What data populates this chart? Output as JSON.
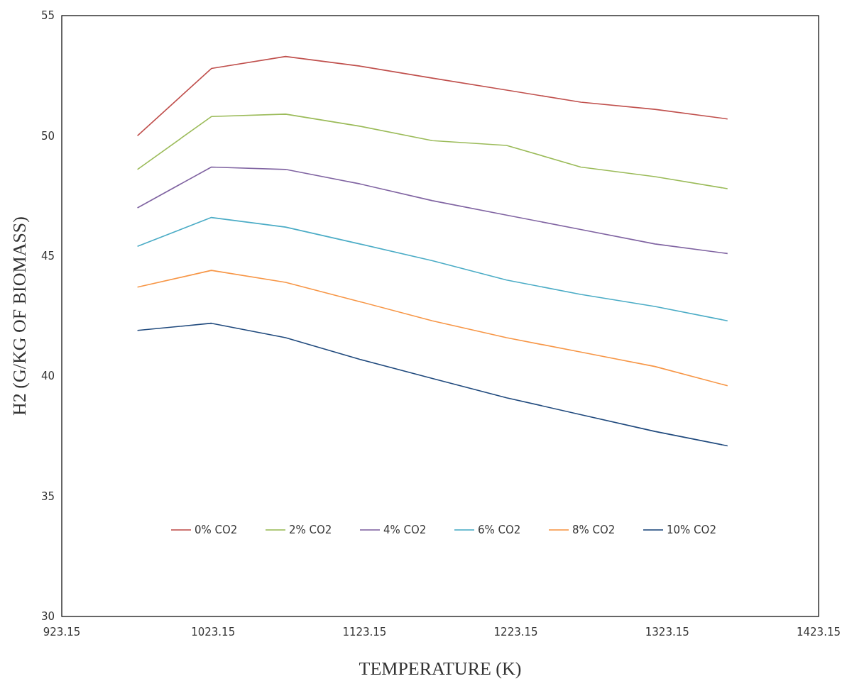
{
  "chart_data": {
    "type": "line",
    "xlabel": "TEMPERATURE  (K)",
    "ylabel": "H2 (G/KG OF BIOMASS)",
    "x": [
      973.15,
      1022,
      1071,
      1120,
      1168,
      1217,
      1266,
      1315,
      1363
    ],
    "xlim": [
      923.15,
      1423.15
    ],
    "xticks": [
      {
        "value": 923.15,
        "label": "923.15"
      },
      {
        "value": 1023.15,
        "label": "1023.15"
      },
      {
        "value": 1123.15,
        "label": "1123.15"
      },
      {
        "value": 1223.15,
        "label": "1223.15"
      },
      {
        "value": 1323.15,
        "label": "1323.15"
      },
      {
        "value": 1423.15,
        "label": "1423.15"
      }
    ],
    "ylim": [
      30,
      55
    ],
    "yticks": [
      30,
      35,
      40,
      45,
      50,
      55
    ],
    "grid": false,
    "legend": "bottom",
    "marker": "none",
    "line_style": "solid",
    "series": [
      {
        "name": "0% CO2",
        "color": "#c0504d",
        "values": [
          50.0,
          52.8,
          53.3,
          52.9,
          52.4,
          51.9,
          51.4,
          51.1,
          50.7
        ]
      },
      {
        "name": "2% CO2",
        "color": "#9bbb59",
        "values": [
          48.6,
          50.8,
          50.9,
          50.4,
          49.8,
          49.6,
          48.7,
          48.3,
          47.8
        ]
      },
      {
        "name": "4% CO2",
        "color": "#8064a2",
        "values": [
          47.0,
          48.7,
          48.6,
          48.0,
          47.3,
          46.7,
          46.1,
          45.5,
          45.1
        ]
      },
      {
        "name": "6% CO2",
        "color": "#4bacc6",
        "values": [
          45.4,
          46.6,
          46.2,
          45.5,
          44.8,
          44.0,
          43.4,
          42.9,
          42.3
        ]
      },
      {
        "name": "8% CO2",
        "color": "#f79646",
        "values": [
          43.7,
          44.4,
          43.9,
          43.1,
          42.3,
          41.6,
          41.0,
          40.4,
          39.6
        ]
      },
      {
        "name": "10% CO2",
        "color": "#1f497d",
        "values": [
          41.9,
          42.2,
          41.6,
          40.7,
          39.9,
          39.1,
          38.4,
          37.7,
          37.1
        ]
      }
    ]
  }
}
